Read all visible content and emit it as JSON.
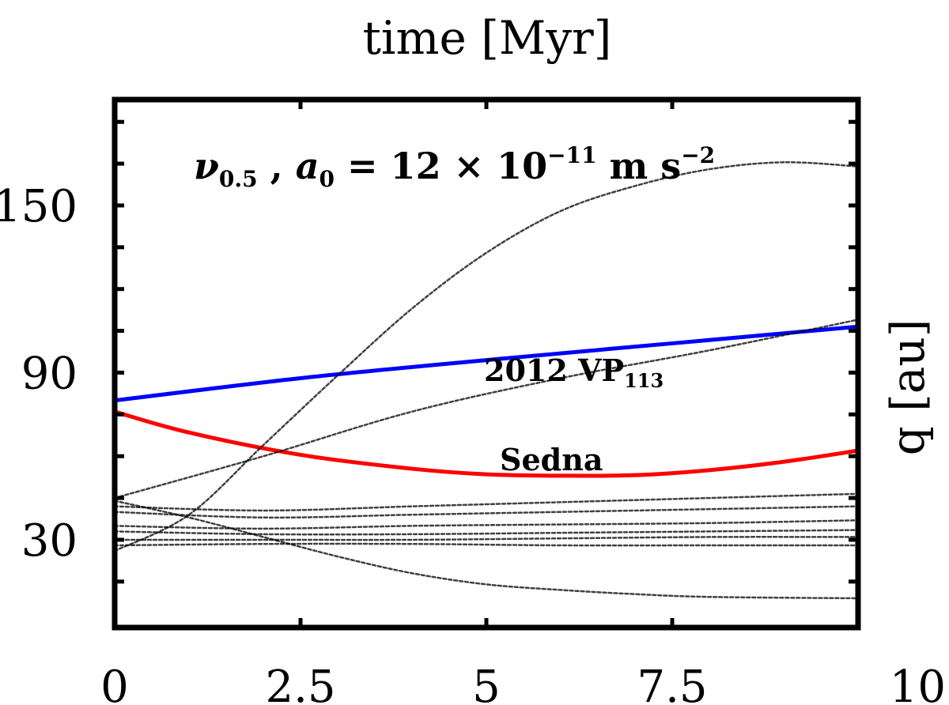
{
  "chart_data": {
    "type": "line",
    "title": "",
    "xlabel": "time [Myr]",
    "ylabel": "q [au]",
    "xlim": [
      0,
      10
    ],
    "ylim": [
      -1.5,
      188
    ],
    "xticks": [
      0,
      2.5,
      5,
      7.5,
      10
    ],
    "xtick_labels": [
      "0",
      "2.5",
      "5",
      "7.5",
      "10"
    ],
    "yticks": [
      30,
      90,
      150
    ],
    "ytick_labels": [
      "30",
      "90",
      "150"
    ],
    "annotation": {
      "model": "ν",
      "model_sub": "0.5",
      "sep": " , ",
      "param": "a",
      "param_sub": "0",
      "eq": " = 12 × 10",
      "exp": "−11",
      "unit": " m s",
      "unit_exp": "−2"
    },
    "series": [
      {
        "name": "2012 VP",
        "name_sub": "113",
        "color": "#0000ff",
        "style": "solid",
        "x": [
          0,
          2.5,
          5,
          7.5,
          10
        ],
        "y": [
          80,
          88,
          94.5,
          100.5,
          106.5
        ]
      },
      {
        "name": "Sedna",
        "color": "#ff0000",
        "style": "solid",
        "x": [
          0,
          1,
          2.5,
          4,
          5,
          6,
          7,
          8,
          9,
          10
        ],
        "y": [
          76,
          68.5,
          60.5,
          55.5,
          53.5,
          53,
          53.2,
          55,
          58,
          62
        ]
      },
      {
        "name": "",
        "color": "#000000",
        "style": "dotted",
        "x": [
          0,
          1,
          2,
          3,
          4,
          5,
          6,
          7,
          8,
          9,
          10
        ],
        "y": [
          26,
          39,
          64,
          89,
          113,
          133,
          148,
          157,
          163,
          165.5,
          164
        ]
      },
      {
        "name": "",
        "color": "#000000",
        "style": "dotted",
        "x": [
          0,
          2,
          4,
          6,
          8,
          10
        ],
        "y": [
          45,
          60,
          76,
          88,
          98,
          109
        ]
      },
      {
        "name": "",
        "color": "#000000",
        "style": "dotted",
        "x": [
          0,
          2,
          4,
          6,
          8,
          10
        ],
        "y": [
          40,
          38,
          39,
          40,
          41,
          42
        ]
      },
      {
        "name": "",
        "color": "#000000",
        "style": "dotted",
        "x": [
          0,
          2,
          4,
          6,
          8,
          10
        ],
        "y": [
          42,
          40.5,
          42,
          43.5,
          45,
          46.5
        ]
      },
      {
        "name": "",
        "color": "#000000",
        "style": "dotted",
        "x": [
          0,
          2,
          4,
          6,
          8,
          10
        ],
        "y": [
          35,
          34,
          35,
          35.5,
          36,
          37
        ]
      },
      {
        "name": "",
        "color": "#000000",
        "style": "dotted",
        "x": [
          0,
          2,
          4,
          6,
          8,
          10
        ],
        "y": [
          33,
          32,
          32,
          32.5,
          33,
          33.5
        ]
      },
      {
        "name": "",
        "color": "#000000",
        "style": "dotted",
        "x": [
          0,
          2,
          4,
          6,
          8,
          10
        ],
        "y": [
          30,
          30,
          30,
          30.5,
          31,
          31
        ]
      },
      {
        "name": "",
        "color": "#000000",
        "style": "dotted",
        "x": [
          0,
          2,
          4,
          6,
          8,
          10
        ],
        "y": [
          28,
          28.5,
          28.5,
          28,
          28,
          28
        ]
      },
      {
        "name": "",
        "color": "#000000",
        "style": "dotted",
        "x": [
          0,
          1,
          2,
          3,
          4,
          5,
          6,
          7,
          8,
          10
        ],
        "y": [
          44,
          38,
          31,
          24,
          18,
          14,
          12,
          10.5,
          9.5,
          9
        ]
      }
    ]
  }
}
